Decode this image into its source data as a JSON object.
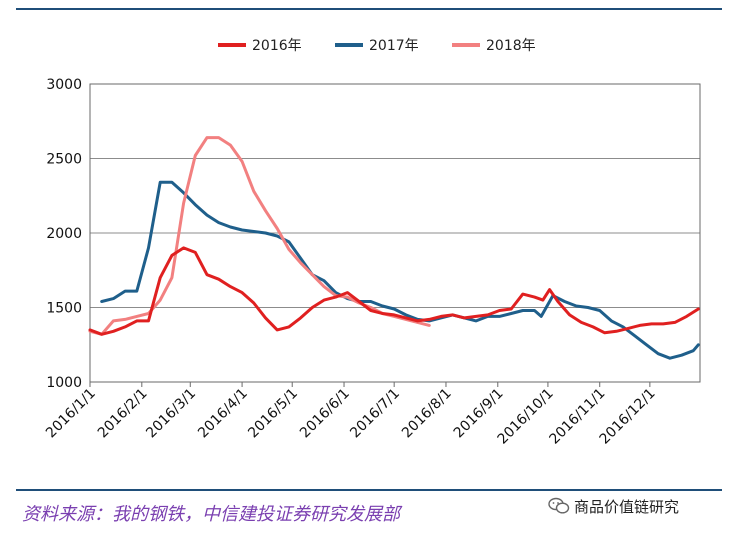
{
  "chart_data": {
    "type": "line",
    "title": "",
    "xlabel": "",
    "ylabel": "",
    "ylim": [
      1000,
      3000
    ],
    "yticks": [
      1000,
      1500,
      2000,
      2500,
      3000
    ],
    "xlim": [
      0,
      365
    ],
    "xticks": [
      {
        "day": 0,
        "label": "2016/1/1"
      },
      {
        "day": 31,
        "label": "2016/2/1"
      },
      {
        "day": 60,
        "label": "2016/3/1"
      },
      {
        "day": 91,
        "label": "2016/4/1"
      },
      {
        "day": 121,
        "label": "2016/5/1"
      },
      {
        "day": 152,
        "label": "2016/6/1"
      },
      {
        "day": 182,
        "label": "2016/7/1"
      },
      {
        "day": 213,
        "label": "2016/8/1"
      },
      {
        "day": 244,
        "label": "2016/9/1"
      },
      {
        "day": 274,
        "label": "2016/10/1"
      },
      {
        "day": 305,
        "label": "2016/11/1"
      },
      {
        "day": 335,
        "label": "2016/12/1"
      }
    ],
    "grid": "horizontal",
    "legend_position": "top",
    "series": [
      {
        "name": "2016年",
        "color": "#e02020",
        "x": [
          0,
          7,
          14,
          21,
          28,
          35,
          42,
          49,
          56,
          63,
          70,
          77,
          84,
          91,
          98,
          105,
          112,
          119,
          126,
          133,
          140,
          147,
          154,
          161,
          168,
          175,
          182,
          189,
          196,
          203,
          210,
          217,
          224,
          231,
          238,
          245,
          252,
          259,
          266,
          271,
          275,
          280,
          287,
          294,
          301,
          308,
          315,
          322,
          329,
          336,
          343,
          350,
          357,
          364
        ],
        "values": [
          1350,
          1320,
          1340,
          1370,
          1410,
          1410,
          1700,
          1850,
          1900,
          1870,
          1720,
          1690,
          1640,
          1600,
          1530,
          1430,
          1350,
          1370,
          1430,
          1500,
          1550,
          1570,
          1600,
          1540,
          1480,
          1460,
          1450,
          1430,
          1410,
          1420,
          1440,
          1450,
          1430,
          1440,
          1450,
          1480,
          1490,
          1590,
          1570,
          1550,
          1620,
          1540,
          1450,
          1400,
          1370,
          1330,
          1340,
          1360,
          1380,
          1390,
          1390,
          1400,
          1440,
          1490
        ]
      },
      {
        "name": "2017年",
        "color": "#1f5f8b",
        "x": [
          7,
          14,
          21,
          28,
          35,
          42,
          49,
          56,
          63,
          70,
          77,
          84,
          91,
          98,
          105,
          112,
          119,
          126,
          133,
          140,
          147,
          154,
          161,
          168,
          175,
          182,
          189,
          196,
          203,
          210,
          217,
          224,
          231,
          238,
          245,
          252,
          259,
          266,
          270,
          277,
          284,
          291,
          298,
          305,
          312,
          319,
          326,
          333,
          340,
          347,
          354,
          361,
          364
        ],
        "values": [
          1540,
          1560,
          1610,
          1610,
          1900,
          2340,
          2340,
          2270,
          2190,
          2120,
          2070,
          2040,
          2020,
          2010,
          2000,
          1980,
          1940,
          1830,
          1720,
          1680,
          1600,
          1560,
          1540,
          1540,
          1510,
          1490,
          1450,
          1420,
          1410,
          1430,
          1450,
          1430,
          1410,
          1440,
          1440,
          1460,
          1480,
          1480,
          1440,
          1580,
          1540,
          1510,
          1500,
          1480,
          1410,
          1370,
          1310,
          1250,
          1190,
          1160,
          1180,
          1210,
          1250
        ]
      },
      {
        "name": "2018年",
        "color": "#f28080",
        "x": [
          0,
          7,
          14,
          21,
          28,
          35,
          42,
          49,
          56,
          63,
          70,
          77,
          84,
          91,
          98,
          105,
          112,
          119,
          126,
          133,
          140,
          147,
          154,
          161,
          168,
          175,
          182,
          189,
          196,
          203
        ],
        "values": [
          1340,
          1320,
          1410,
          1420,
          1440,
          1460,
          1550,
          1700,
          2200,
          2520,
          2640,
          2640,
          2590,
          2480,
          2280,
          2150,
          2030,
          1890,
          1800,
          1720,
          1640,
          1580,
          1570,
          1530,
          1500,
          1460,
          1440,
          1420,
          1400,
          1380
        ]
      }
    ]
  },
  "footer": {
    "source_note": "资料来源：我的钢铁，中信建投证券研究发展部",
    "watermark": "商品价值链研究"
  }
}
